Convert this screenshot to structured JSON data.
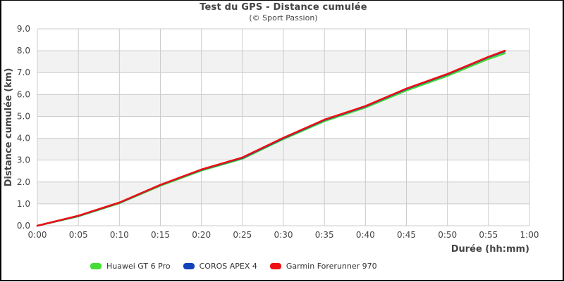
{
  "chart_data": {
    "type": "line",
    "title": "Test du GPS - Distance cumulée",
    "subtitle": "(© Sport Passion)",
    "xlabel": "Durée (hh:mm)",
    "ylabel": "Distance cumulée (km)",
    "xlim_minutes": [
      0,
      60
    ],
    "ylim": [
      0,
      9
    ],
    "x_tick_labels": [
      "0:00",
      "0:05",
      "0:10",
      "0:15",
      "0:20",
      "0:25",
      "0:30",
      "0:35",
      "0:40",
      "0:45",
      "0:50",
      "0:55",
      "1:00"
    ],
    "y_tick_labels": [
      "0.0",
      "1.0",
      "2.0",
      "3.0",
      "4.0",
      "5.0",
      "6.0",
      "7.0",
      "8.0",
      "9.0"
    ],
    "grid": true,
    "alternating_bands": true,
    "legend_position": "bottom",
    "x_minutes": [
      0,
      5,
      10,
      15,
      20,
      25,
      30,
      35,
      40,
      45,
      50,
      55,
      57
    ],
    "series": [
      {
        "name": "Huawei GT 6 Pro",
        "color": "#44dd33",
        "values": [
          0.0,
          0.43,
          1.03,
          1.83,
          2.52,
          3.06,
          3.96,
          4.78,
          5.4,
          6.18,
          6.85,
          7.62,
          7.88
        ]
      },
      {
        "name": "COROS APEX 4",
        "color": "#1144bb",
        "values": [
          0.0,
          0.45,
          1.05,
          1.86,
          2.56,
          3.1,
          4.0,
          4.83,
          5.45,
          6.25,
          6.92,
          7.7,
          7.97
        ]
      },
      {
        "name": "Garmin Forerunner 970",
        "color": "#ee1111",
        "values": [
          0.0,
          0.46,
          1.06,
          1.87,
          2.57,
          3.12,
          4.02,
          4.85,
          5.47,
          6.27,
          6.94,
          7.72,
          8.0
        ]
      }
    ]
  },
  "colors": {
    "band": "#f2f2f2",
    "grid": "#cccccc",
    "text": "#444444"
  }
}
